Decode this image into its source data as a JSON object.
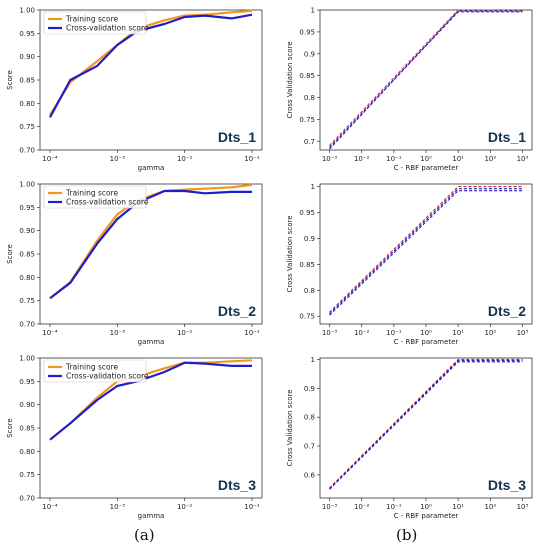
{
  "captions": {
    "left": "(a)",
    "right": "(b)"
  },
  "colors": {
    "training": "#F7941D",
    "cv": "#1F1FC8",
    "red_dash": "#D62728",
    "blue_dash": "#1F1FC8",
    "axis": "#333333"
  },
  "chart_data": [
    {
      "id": "a1",
      "type": "line",
      "label": "Dts_1",
      "xscale": "log",
      "xlim": [
        0.0001,
        0.1
      ],
      "x_ticks": [
        "10⁻⁴",
        "10⁻³",
        "10⁻²",
        "10⁻¹"
      ],
      "ylim": [
        0.7,
        1.0
      ],
      "y_ticks": [
        "0.70",
        "0.75",
        "0.80",
        "0.85",
        "0.90",
        "0.95",
        "1.00"
      ],
      "xlabel": "gamma",
      "ylabel": "Score",
      "legend": "top-left",
      "x": [
        0.0001,
        0.0002,
        0.0005,
        0.001,
        0.002,
        0.005,
        0.01,
        0.02,
        0.05,
        0.1
      ],
      "series": [
        {
          "name": "Training score",
          "color": "training",
          "values": [
            0.775,
            0.845,
            0.89,
            0.925,
            0.96,
            0.978,
            0.988,
            0.99,
            0.995,
            0.998
          ]
        },
        {
          "name": "Cross-validation score",
          "color": "cv",
          "values": [
            0.77,
            0.85,
            0.88,
            0.925,
            0.955,
            0.97,
            0.985,
            0.988,
            0.982,
            0.99
          ]
        }
      ]
    },
    {
      "id": "a2",
      "type": "line",
      "label": "Dts_2",
      "xscale": "log",
      "xlim": [
        0.0001,
        0.1
      ],
      "x_ticks": [
        "10⁻⁴",
        "10⁻³",
        "10⁻²",
        "10⁻¹"
      ],
      "ylim": [
        0.7,
        1.0
      ],
      "y_ticks": [
        "0.70",
        "0.75",
        "0.80",
        "0.85",
        "0.90",
        "0.95",
        "1.00"
      ],
      "xlabel": "gamma",
      "ylabel": "Score",
      "legend": "top-left",
      "x": [
        0.0001,
        0.0002,
        0.0005,
        0.001,
        0.002,
        0.005,
        0.01,
        0.02,
        0.05,
        0.1
      ],
      "series": [
        {
          "name": "Training score",
          "color": "training",
          "values": [
            0.755,
            0.79,
            0.878,
            0.935,
            0.965,
            0.985,
            0.988,
            0.99,
            0.993,
            0.998
          ]
        },
        {
          "name": "Cross-validation score",
          "color": "cv",
          "values": [
            0.755,
            0.788,
            0.872,
            0.925,
            0.96,
            0.985,
            0.985,
            0.98,
            0.983,
            0.983
          ]
        }
      ]
    },
    {
      "id": "a3",
      "type": "line",
      "label": "Dts_3",
      "xscale": "log",
      "xlim": [
        0.0001,
        0.1
      ],
      "x_ticks": [
        "10⁻⁴",
        "10⁻³",
        "10⁻²",
        "10⁻¹"
      ],
      "ylim": [
        0.7,
        1.0
      ],
      "y_ticks": [
        "0.70",
        "0.75",
        "0.80",
        "0.85",
        "0.90",
        "0.95",
        "1.00"
      ],
      "xlabel": "gamma",
      "ylabel": "Score",
      "legend": "top-left",
      "x": [
        0.0001,
        0.0002,
        0.0005,
        0.001,
        0.002,
        0.005,
        0.01,
        0.02,
        0.05,
        0.1
      ],
      "series": [
        {
          "name": "Training score",
          "color": "training",
          "values": [
            0.825,
            0.86,
            0.915,
            0.95,
            0.96,
            0.978,
            0.99,
            0.99,
            0.993,
            0.995
          ]
        },
        {
          "name": "Cross-validation score",
          "color": "cv",
          "values": [
            0.825,
            0.86,
            0.91,
            0.94,
            0.95,
            0.97,
            0.99,
            0.988,
            0.983,
            0.983
          ]
        }
      ]
    },
    {
      "id": "b1",
      "type": "line",
      "label": "Dts_1",
      "xscale": "log",
      "xlim": [
        0.001,
        1000
      ],
      "x_ticks": [
        "10⁻³",
        "10⁻²",
        "10⁻¹",
        "10⁰",
        "10¹",
        "10²",
        "10³"
      ],
      "ylim": [
        0.68,
        1.0
      ],
      "y_ticks": [
        "0.7",
        "0.75",
        "0.8",
        "0.85",
        "0.9",
        "0.95",
        "1"
      ],
      "y_tick_values": [
        0.7,
        0.75,
        0.8,
        0.85,
        0.9,
        0.95,
        1.0
      ],
      "xlabel": "C - RBF parameter",
      "ylabel": "Cross Validation score",
      "x": [
        0.001,
        10,
        1000
      ],
      "series": [
        {
          "color": "red_dash",
          "dash": true,
          "values": [
            0.69,
            1.0,
            1.0
          ]
        },
        {
          "color": "blue_dash",
          "dash": true,
          "values": [
            0.682,
            0.998,
            0.998
          ]
        },
        {
          "color": "blue_dash",
          "dash": true,
          "values": [
            0.686,
            0.996,
            0.996
          ]
        }
      ]
    },
    {
      "id": "b2",
      "type": "line",
      "label": "Dts_2",
      "xscale": "log",
      "xlim": [
        0.001,
        1000
      ],
      "x_ticks": [
        "10⁻³",
        "10⁻²",
        "10⁻¹",
        "10⁰",
        "10¹",
        "10²",
        "10³"
      ],
      "ylim": [
        0.735,
        1.005
      ],
      "y_ticks": [
        "0.75",
        "0.8",
        "0.85",
        "0.9",
        "0.95",
        "1"
      ],
      "y_tick_values": [
        0.75,
        0.8,
        0.85,
        0.9,
        0.95,
        1.0
      ],
      "xlabel": "C - RBF parameter",
      "ylabel": "Cross Validation score",
      "x": [
        0.001,
        10,
        1000
      ],
      "series": [
        {
          "color": "red_dash",
          "dash": true,
          "values": [
            0.758,
            1.0,
            1.0
          ]
        },
        {
          "color": "blue_dash",
          "dash": true,
          "values": [
            0.752,
            0.992,
            0.992
          ]
        },
        {
          "color": "blue_dash",
          "dash": true,
          "values": [
            0.755,
            0.996,
            0.996
          ]
        }
      ]
    },
    {
      "id": "b3",
      "type": "line",
      "label": "Dts_3",
      "xscale": "log",
      "xlim": [
        0.001,
        1000
      ],
      "x_ticks": [
        "10⁻³",
        "10⁻²",
        "10⁻¹",
        "10⁰",
        "10¹",
        "10²",
        "10³"
      ],
      "ylim": [
        0.52,
        1.005
      ],
      "y_ticks": [
        "0.6",
        "0.7",
        "0.8",
        "0.9",
        "1"
      ],
      "y_tick_values": [
        0.6,
        0.7,
        0.8,
        0.9,
        1.0
      ],
      "xlabel": "C - RBF parameter",
      "ylabel": "Cross Validation score",
      "x": [
        0.001,
        10,
        1000
      ],
      "series": [
        {
          "color": "red_dash",
          "dash": true,
          "values": [
            0.555,
            1.0,
            1.0
          ]
        },
        {
          "color": "blue_dash",
          "dash": true,
          "values": [
            0.55,
            0.992,
            0.992
          ]
        },
        {
          "color": "blue_dash",
          "dash": true,
          "values": [
            0.552,
            0.996,
            0.996
          ]
        }
      ]
    }
  ]
}
